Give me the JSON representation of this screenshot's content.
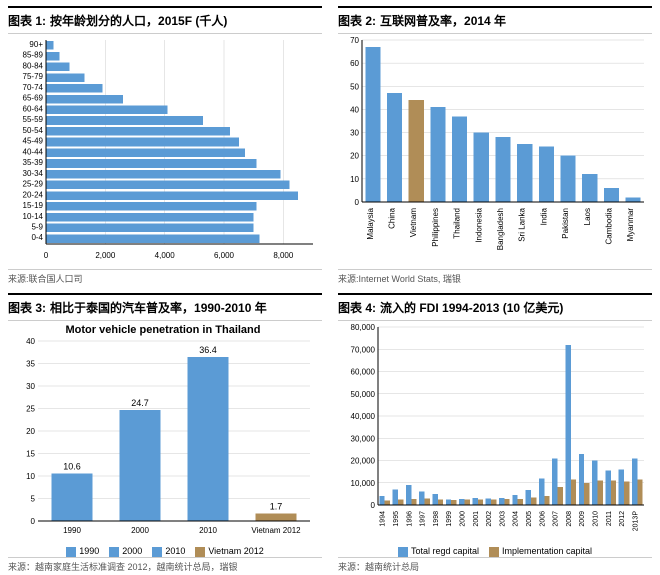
{
  "colors": {
    "main": "#5b9bd5",
    "alt": "#b08d57",
    "grid": "#cccccc",
    "text": "#000000"
  },
  "chart1": {
    "title_prefix": "图表 1: ",
    "title": "按年龄划分的人口，2015F (千人)",
    "type": "horizontal-bar",
    "categories": [
      "90+",
      "85-89",
      "80-84",
      "75-79",
      "70-74",
      "65-69",
      "60-64",
      "55-59",
      "50-54",
      "45-49",
      "40-44",
      "35-39",
      "30-34",
      "25-29",
      "20-24",
      "15-19",
      "10-14",
      "5-9",
      "0-4"
    ],
    "values": [
      250,
      450,
      800,
      1300,
      1900,
      2600,
      4100,
      5300,
      6200,
      6500,
      6700,
      7100,
      7900,
      8200,
      8500,
      7100,
      7000,
      7000,
      7200
    ],
    "xmax": 9000,
    "xstep": 2000,
    "bar_color": "#5b9bd5",
    "source_label": "来源:",
    "source": "联合国人口司"
  },
  "chart2": {
    "title_prefix": "图表 2: ",
    "title": "互联网普及率，2014 年",
    "type": "bar",
    "categories": [
      "Malaysia",
      "China",
      "Vietnam",
      "Philippines",
      "Thailand",
      "Indonesia",
      "Bangladesh",
      "Sri Lanka",
      "India",
      "Pakistan",
      "Laos",
      "Cambodia",
      "Myanmar"
    ],
    "values": [
      67,
      47,
      44,
      41,
      37,
      30,
      28,
      25,
      24,
      20,
      12,
      6,
      2
    ],
    "highlight_index": 2,
    "ymax": 70,
    "ystep": 10,
    "bar_color": "#5b9bd5",
    "highlight_color": "#b08d57",
    "source_label": "来源:",
    "source": "Internet World Stats, 瑞银"
  },
  "chart3": {
    "title_prefix": "图表 3: ",
    "title": "相比于泰国的汽车普及率，1990-2010 年",
    "inner_title": "Motor vehicle penetration in Thailand",
    "type": "bar",
    "categories": [
      "1990",
      "2000",
      "2010",
      "Vietnam 2012"
    ],
    "values": [
      10.6,
      24.7,
      36.4,
      1.7
    ],
    "show_values": true,
    "ymax": 40,
    "ystep": 5,
    "colors": [
      "#5b9bd5",
      "#5b9bd5",
      "#5b9bd5",
      "#b08d57"
    ],
    "legend": [
      "1990",
      "2000",
      "2010",
      "Vietnam 2012"
    ],
    "source_label": "来源：",
    "source": "越南家庭生活标准调查 2012，越南统计总局，瑞银"
  },
  "chart4": {
    "title_prefix": "图表 4: ",
    "title": "流入的 FDI 1994-2013 (10 亿美元)",
    "type": "grouped-bar",
    "categories": [
      "1994",
      "1995",
      "1996",
      "1997",
      "1998",
      "1999",
      "2000",
      "2001",
      "2002",
      "2003",
      "2004",
      "2005",
      "2006",
      "2007",
      "2008",
      "2009",
      "2010",
      "2011",
      "2012",
      "2013P"
    ],
    "series": [
      {
        "name": "Total regd capital",
        "color": "#5b9bd5",
        "values": [
          4000,
          7000,
          9000,
          6000,
          5000,
          2500,
          2800,
          3200,
          3000,
          3200,
          4500,
          6800,
          12000,
          21000,
          72000,
          23000,
          20000,
          15500,
          16000,
          21000
        ]
      },
      {
        "name": "Implementation capital",
        "color": "#b08d57",
        "values": [
          2000,
          2500,
          2800,
          3000,
          2400,
          2200,
          2400,
          2400,
          2500,
          2600,
          2800,
          3300,
          4100,
          8000,
          11500,
          10000,
          11000,
          11000,
          10500,
          11500
        ]
      }
    ],
    "ymax": 80000,
    "ystep": 10000,
    "source_label": "来源：",
    "source": "越南统计总局"
  }
}
